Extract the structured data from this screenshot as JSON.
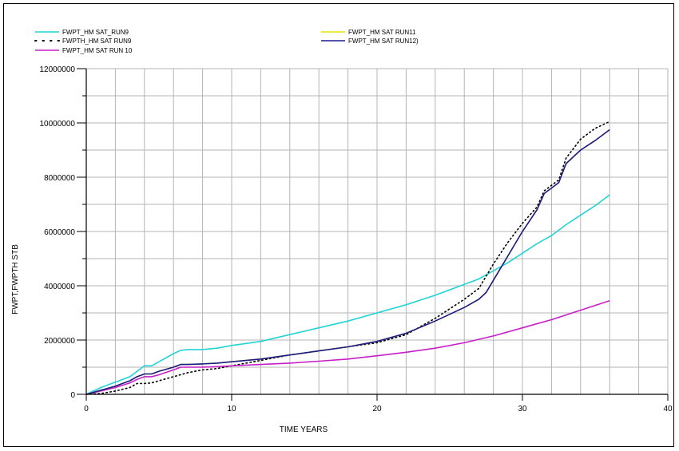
{
  "chart_data": {
    "type": "line",
    "xlabel": "TIME   YEARS",
    "ylabel": "FWPT,FWPTH   STB",
    "xlim": [
      0,
      40
    ],
    "ylim": [
      0,
      12000000
    ],
    "x_ticks": [
      "0",
      "10",
      "20",
      "30",
      "40"
    ],
    "y_ticks": [
      "0",
      "2000000",
      "4000000",
      "6000000",
      "8000000",
      "10000000",
      "12000000"
    ],
    "grid": true,
    "legend_position": "top",
    "series": [
      {
        "name": "FWPT_HM SAT_RUN9",
        "color": "#22d3d3",
        "style": "solid",
        "x": [
          0,
          1,
          2,
          3,
          3.5,
          4,
          4.5,
          5,
          6,
          6.5,
          7,
          8,
          9,
          10,
          12,
          14,
          16,
          18,
          20,
          22,
          24,
          26,
          27,
          28,
          29,
          30,
          31,
          32,
          33,
          34,
          35,
          36
        ],
        "y": [
          0,
          250000,
          450000,
          650000,
          850000,
          1050000,
          1050000,
          1200000,
          1500000,
          1620000,
          1650000,
          1650000,
          1700000,
          1800000,
          1950000,
          2200000,
          2450000,
          2700000,
          3000000,
          3300000,
          3650000,
          4050000,
          4250000,
          4550000,
          4850000,
          5200000,
          5550000,
          5850000,
          6250000,
          6600000,
          6950000,
          7350000
        ]
      },
      {
        "name": "FWPTH_HM SAT RUN9",
        "color": "#000000",
        "style": "dotted",
        "x": [
          0,
          1,
          2,
          3,
          3.5,
          4,
          4.5,
          5,
          6,
          7,
          8,
          9,
          10,
          12,
          14,
          16,
          18,
          20,
          22,
          24,
          26,
          27,
          28,
          29,
          30,
          31,
          31.5,
          32,
          32.5,
          33,
          34,
          35,
          36
        ],
        "y": [
          0,
          30000,
          120000,
          250000,
          400000,
          400000,
          420000,
          500000,
          650000,
          800000,
          900000,
          950000,
          1050000,
          1250000,
          1450000,
          1600000,
          1750000,
          1900000,
          2200000,
          2800000,
          3500000,
          3900000,
          4800000,
          5600000,
          6300000,
          6900000,
          7500000,
          7700000,
          7900000,
          8700000,
          9400000,
          9800000,
          10050000
        ]
      },
      {
        "name": "FWPT_HM SAT RUN 10",
        "color": "#c81ec8",
        "style": "solid",
        "x": [
          0,
          1,
          2,
          3,
          3.5,
          4,
          4.5,
          5,
          6,
          6.5,
          7,
          8,
          9,
          10,
          12,
          14,
          16,
          18,
          20,
          22,
          24,
          26,
          28,
          30,
          32,
          34,
          36
        ],
        "y": [
          0,
          120000,
          250000,
          420000,
          550000,
          650000,
          650000,
          720000,
          900000,
          1000000,
          1000000,
          1000000,
          1020000,
          1050000,
          1100000,
          1150000,
          1220000,
          1300000,
          1420000,
          1550000,
          1700000,
          1900000,
          2150000,
          2450000,
          2750000,
          3100000,
          3450000
        ]
      },
      {
        "name": "FWPT_HM SAT RUN11",
        "color": "#e6e600",
        "style": "solid",
        "x": [
          0,
          1,
          2,
          3,
          3.5,
          4,
          4.5,
          5,
          6,
          6.5,
          7,
          8,
          9,
          10,
          12,
          14,
          16,
          18,
          20,
          22,
          24,
          26,
          27,
          27.5,
          28,
          29,
          30,
          31,
          31.5,
          32,
          32.5,
          33,
          34,
          35,
          36
        ],
        "y": [
          0,
          150000,
          300000,
          500000,
          650000,
          750000,
          750000,
          850000,
          1000000,
          1100000,
          1100000,
          1120000,
          1150000,
          1200000,
          1300000,
          1450000,
          1600000,
          1750000,
          1950000,
          2250000,
          2700000,
          3200000,
          3500000,
          3750000,
          4200000,
          5100000,
          6000000,
          6800000,
          7400000,
          7600000,
          7800000,
          8500000,
          9000000,
          9350000,
          9750000
        ]
      },
      {
        "name": "FWPT_HM SAT RUN12)",
        "color": "#1a1a8c",
        "style": "solid",
        "x": [
          0,
          1,
          2,
          3,
          3.5,
          4,
          4.5,
          5,
          6,
          6.5,
          7,
          8,
          9,
          10,
          12,
          14,
          16,
          18,
          20,
          22,
          24,
          26,
          27,
          27.5,
          28,
          29,
          30,
          31,
          31.5,
          32,
          32.5,
          33,
          34,
          35,
          36
        ],
        "y": [
          0,
          150000,
          300000,
          500000,
          650000,
          750000,
          750000,
          850000,
          1000000,
          1100000,
          1100000,
          1120000,
          1150000,
          1200000,
          1300000,
          1450000,
          1600000,
          1750000,
          1950000,
          2250000,
          2700000,
          3200000,
          3500000,
          3750000,
          4200000,
          5100000,
          6000000,
          6800000,
          7400000,
          7600000,
          7800000,
          8500000,
          9000000,
          9350000,
          9750000
        ]
      }
    ]
  }
}
